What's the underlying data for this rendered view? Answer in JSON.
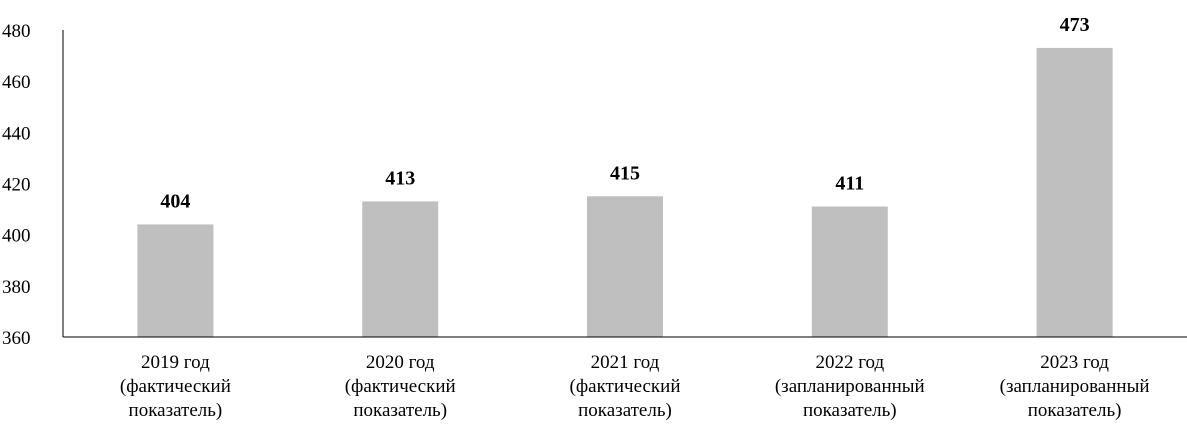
{
  "chart_data": {
    "type": "bar",
    "title": "",
    "xlabel": "",
    "ylabel": "",
    "categories": [
      [
        "2019 год",
        "(фактический",
        "показатель)"
      ],
      [
        "2020 год",
        "(фактический",
        "показатель)"
      ],
      [
        "2021 год",
        "(фактический",
        "показатель)"
      ],
      [
        "2022 год",
        "(запланированный",
        "показатель)"
      ],
      [
        "2023 год",
        "(запланированный",
        "показатель)"
      ]
    ],
    "values": [
      404,
      413,
      415,
      411,
      473
    ],
    "data_labels": [
      "404",
      "413",
      "415",
      "411",
      "473"
    ],
    "ylim": [
      360,
      480
    ],
    "yticks": [
      360,
      380,
      400,
      420,
      440,
      460,
      480
    ],
    "ytick_labels": [
      "360",
      "380",
      "400",
      "420",
      "440",
      "460",
      "480"
    ],
    "grid": false,
    "legend": "none",
    "colors": {
      "bar": "#bfbfbf",
      "axis": "#000000",
      "text": "#000000"
    }
  }
}
